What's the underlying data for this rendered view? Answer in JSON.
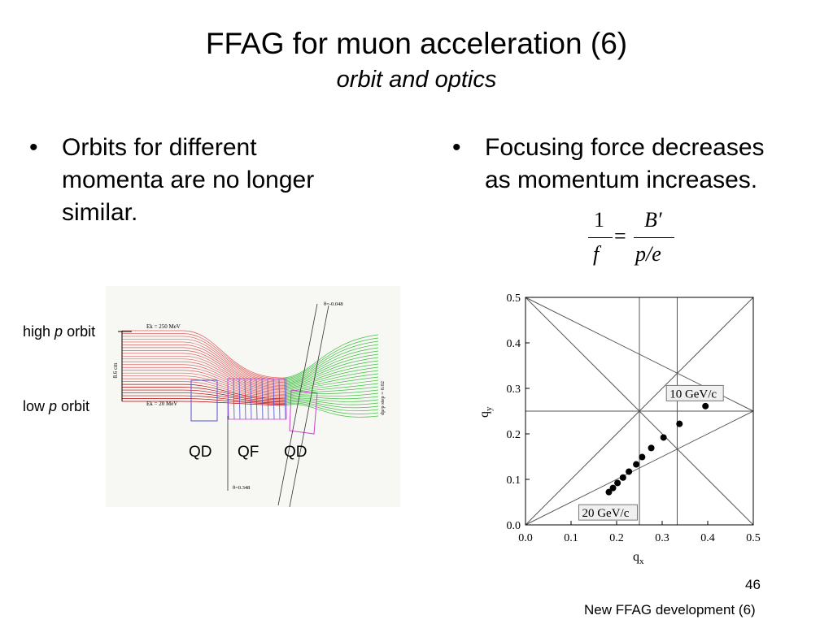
{
  "slide": {
    "title": "FFAG for muon acceleration (6)",
    "subtitle": "orbit and optics",
    "left_bullet": [
      "Orbits for different",
      "momenta are no longer",
      "similar."
    ],
    "right_bullet": [
      "Focusing force decreases",
      "as momentum increases."
    ],
    "bullet_char": "•",
    "equation": {
      "lhs_num": "1",
      "lhs_den": "f",
      "equals": "=",
      "rhs_num": "B′",
      "rhs_den": "p/e"
    },
    "orbit_figure": {
      "high_label_pre": "high ",
      "high_label_p": "p",
      "high_label_post": " orbit",
      "low_label_pre": "low ",
      "low_label_p": "p",
      "low_label_post": " orbit",
      "magnets": [
        "QD",
        "QF",
        "QD"
      ],
      "ek_high": "Ek = 250 MeV",
      "ek_low": "Ek = 20 MeV",
      "width_label": "8.6 cm",
      "theta_top": "θ=-0.048",
      "theta_bottom": "θ=0.348",
      "step_label": "dp/p step = 0.02"
    },
    "page_number": "46",
    "footer": "New FFAG development (6)"
  },
  "chart_data": {
    "type": "scatter",
    "xlabel": "q",
    "xlabel_sub": "x",
    "ylabel": "q",
    "ylabel_sub": "y",
    "xlim": [
      0.0,
      0.5
    ],
    "ylim": [
      0.0,
      0.5
    ],
    "xticks": [
      "0.0",
      "0.1",
      "0.2",
      "0.3",
      "0.4",
      "0.5"
    ],
    "yticks": [
      "0.0",
      "0.1",
      "0.2",
      "0.3",
      "0.4",
      "0.5"
    ],
    "grid": false,
    "annotations": [
      {
        "text": "10 GeV/c",
        "x": 0.395,
        "y": 0.26
      },
      {
        "text": "20 GeV/c",
        "x": 0.183,
        "y": 0.073
      }
    ],
    "series": [
      {
        "values": [
          [
            0.183,
            0.072
          ],
          [
            0.192,
            0.081
          ],
          [
            0.202,
            0.092
          ],
          [
            0.214,
            0.104
          ],
          [
            0.227,
            0.117
          ],
          [
            0.243,
            0.133
          ],
          [
            0.256,
            0.149
          ],
          [
            0.276,
            0.169
          ],
          [
            0.303,
            0.192
          ],
          [
            0.338,
            0.222
          ],
          [
            0.395,
            0.261
          ]
        ]
      }
    ],
    "reference_lines": [
      {
        "x1": 0.0,
        "y1": 0.5,
        "x2": 0.5,
        "y2": 0.0
      },
      {
        "x1": 0.0,
        "y1": 0.0,
        "x2": 0.5,
        "y2": 0.5
      },
      {
        "x1": 0.0,
        "y1": 0.5,
        "x2": 0.5,
        "y2": 0.25
      },
      {
        "x1": 0.0,
        "y1": 0.0,
        "x2": 0.5,
        "y2": 0.25
      },
      {
        "x1": 0.0,
        "y1": 0.25,
        "x2": 0.5,
        "y2": 0.25
      },
      {
        "x1": 0.25,
        "y1": 0.0,
        "x2": 0.25,
        "y2": 0.5
      },
      {
        "x1": 0.333,
        "y1": 0.0,
        "x2": 0.333,
        "y2": 0.5
      }
    ]
  }
}
